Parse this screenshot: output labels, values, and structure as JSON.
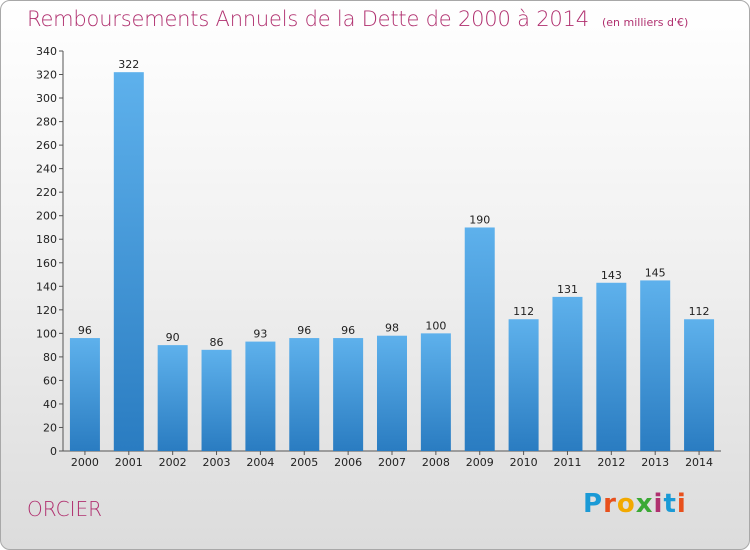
{
  "chart_data": {
    "type": "bar",
    "title": "Remboursements Annuels de la Dette de 2000 à 2014",
    "unit_label": "(en milliers d'€)",
    "categories": [
      "2000",
      "2001",
      "2002",
      "2003",
      "2004",
      "2005",
      "2006",
      "2007",
      "2008",
      "2009",
      "2010",
      "2011",
      "2012",
      "2013",
      "2014"
    ],
    "values": [
      96,
      322,
      90,
      86,
      93,
      96,
      96,
      98,
      100,
      190,
      112,
      131,
      143,
      145,
      112
    ],
    "ylim": [
      0,
      340
    ],
    "ytick_step": 20,
    "grid": false,
    "bar_color_top": "#5eb1ec",
    "bar_color_bottom": "#2a7cc1",
    "xlabel": "",
    "ylabel": ""
  },
  "commune": "ORCIER",
  "logo": {
    "text": "Proxiti",
    "colors": [
      "#1a9ad6",
      "#e8501c",
      "#f2a900",
      "#3aa935",
      "#b0306f",
      "#1a9ad6",
      "#e8501c"
    ]
  }
}
